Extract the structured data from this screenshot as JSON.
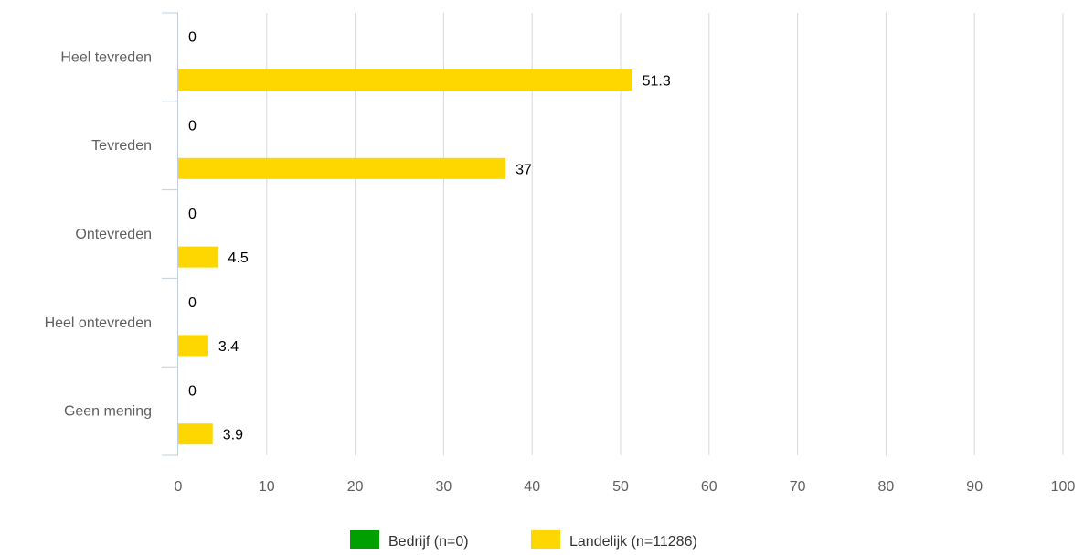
{
  "chart_data": {
    "type": "bar",
    "orientation": "horizontal",
    "categories": [
      "Heel tevreden",
      "Tevreden",
      "Ontevreden",
      "Heel ontevreden",
      "Geen mening"
    ],
    "series": [
      {
        "name": "Bedrijf (n=0)",
        "color": "#00a000",
        "values": [
          0,
          0,
          0,
          0,
          0
        ]
      },
      {
        "name": "Landelijk (n=11286)",
        "color": "#ffd700",
        "values": [
          51.3,
          37,
          4.5,
          3.4,
          3.9
        ]
      }
    ],
    "xlim": [
      0,
      100
    ],
    "xticks": [
      0,
      10,
      20,
      30,
      40,
      50,
      60,
      70,
      80,
      90,
      100
    ],
    "grid": true,
    "legend_position": "bottom-center",
    "data_labels": true
  }
}
